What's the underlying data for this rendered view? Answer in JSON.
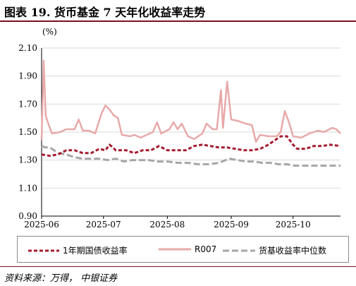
{
  "figure": {
    "title": "图表 19. 货币基金 7 天年化收益率走势",
    "source": "资料来源：万得， 中银证券"
  },
  "colors": {
    "title_rule": "#7a1224",
    "series_treasury": "#a51c30",
    "series_r007": "#e8a9a9",
    "series_median": "#a6a6a6",
    "grid": "#d9d9d9"
  },
  "chart_data": {
    "type": "line",
    "ylabel": "(%)",
    "ylim": [
      0.9,
      2.1
    ],
    "yticks": [
      "2.10",
      "1.90",
      "1.70",
      "1.50",
      "1.30",
      "1.10",
      "0.90"
    ],
    "ytick_values": [
      2.1,
      1.9,
      1.7,
      1.5,
      1.3,
      1.1,
      0.9
    ],
    "xlim": [
      "2025-06-01",
      "2025-10-24"
    ],
    "xticks": [
      {
        "label": "2025-06",
        "date": "2025-06-01"
      },
      {
        "label": "2025-07",
        "date": "2025-07-01"
      },
      {
        "label": "2025-08",
        "date": "2025-08-01"
      },
      {
        "label": "2025-09",
        "date": "2025-09-01"
      },
      {
        "label": "2025-10",
        "date": "2025-10-01"
      }
    ],
    "grid": "horizontal",
    "legend_position": "bottom",
    "series": [
      {
        "name": "1年期国债收益率",
        "style": "dashed",
        "points": [
          [
            "2025-06-01",
            1.34
          ],
          [
            "2025-06-05",
            1.33
          ],
          [
            "2025-06-09",
            1.34
          ],
          [
            "2025-06-13",
            1.37
          ],
          [
            "2025-06-17",
            1.37
          ],
          [
            "2025-06-21",
            1.35
          ],
          [
            "2025-06-25",
            1.35
          ],
          [
            "2025-06-29",
            1.38
          ],
          [
            "2025-07-02",
            1.37
          ],
          [
            "2025-07-04",
            1.41
          ],
          [
            "2025-07-07",
            1.37
          ],
          [
            "2025-07-12",
            1.37
          ],
          [
            "2025-07-16",
            1.35
          ],
          [
            "2025-07-20",
            1.37
          ],
          [
            "2025-07-24",
            1.37
          ],
          [
            "2025-07-28",
            1.4
          ],
          [
            "2025-08-01",
            1.37
          ],
          [
            "2025-08-06",
            1.37
          ],
          [
            "2025-08-10",
            1.37
          ],
          [
            "2025-08-14",
            1.4
          ],
          [
            "2025-08-18",
            1.41
          ],
          [
            "2025-08-22",
            1.4
          ],
          [
            "2025-08-26",
            1.39
          ],
          [
            "2025-08-30",
            1.39
          ],
          [
            "2025-09-03",
            1.38
          ],
          [
            "2025-09-07",
            1.37
          ],
          [
            "2025-09-11",
            1.37
          ],
          [
            "2025-09-15",
            1.38
          ],
          [
            "2025-09-19",
            1.41
          ],
          [
            "2025-09-22",
            1.44
          ],
          [
            "2025-09-25",
            1.47
          ],
          [
            "2025-09-28",
            1.47
          ],
          [
            "2025-10-01",
            1.41
          ],
          [
            "2025-10-03",
            1.38
          ],
          [
            "2025-10-07",
            1.38
          ],
          [
            "2025-10-11",
            1.4
          ],
          [
            "2025-10-15",
            1.4
          ],
          [
            "2025-10-19",
            1.41
          ],
          [
            "2025-10-24",
            1.4
          ]
        ]
      },
      {
        "name": "R007",
        "style": "solid",
        "points": [
          [
            "2025-06-01",
            1.44
          ],
          [
            "2025-06-02",
            2.01
          ],
          [
            "2025-06-03",
            1.62
          ],
          [
            "2025-06-04",
            1.57
          ],
          [
            "2025-06-06",
            1.49
          ],
          [
            "2025-06-10",
            1.5
          ],
          [
            "2025-06-13",
            1.52
          ],
          [
            "2025-06-17",
            1.52
          ],
          [
            "2025-06-19",
            1.59
          ],
          [
            "2025-06-21",
            1.51
          ],
          [
            "2025-06-24",
            1.51
          ],
          [
            "2025-06-27",
            1.49
          ],
          [
            "2025-06-30",
            1.63
          ],
          [
            "2025-07-02",
            1.69
          ],
          [
            "2025-07-04",
            1.66
          ],
          [
            "2025-07-06",
            1.62
          ],
          [
            "2025-07-08",
            1.6
          ],
          [
            "2025-07-10",
            1.48
          ],
          [
            "2025-07-14",
            1.47
          ],
          [
            "2025-07-16",
            1.48
          ],
          [
            "2025-07-19",
            1.46
          ],
          [
            "2025-07-22",
            1.48
          ],
          [
            "2025-07-25",
            1.5
          ],
          [
            "2025-07-27",
            1.57
          ],
          [
            "2025-07-29",
            1.49
          ],
          [
            "2025-08-02",
            1.52
          ],
          [
            "2025-08-04",
            1.57
          ],
          [
            "2025-08-06",
            1.52
          ],
          [
            "2025-08-08",
            1.56
          ],
          [
            "2025-08-11",
            1.47
          ],
          [
            "2025-08-14",
            1.45
          ],
          [
            "2025-08-18",
            1.49
          ],
          [
            "2025-08-20",
            1.56
          ],
          [
            "2025-08-23",
            1.52
          ],
          [
            "2025-08-25",
            1.52
          ],
          [
            "2025-08-27",
            1.8
          ],
          [
            "2025-08-28",
            1.53
          ],
          [
            "2025-08-30",
            1.86
          ],
          [
            "2025-09-01",
            1.59
          ],
          [
            "2025-09-04",
            1.58
          ],
          [
            "2025-09-08",
            1.56
          ],
          [
            "2025-09-11",
            1.55
          ],
          [
            "2025-09-13",
            1.43
          ],
          [
            "2025-09-15",
            1.48
          ],
          [
            "2025-09-19",
            1.47
          ],
          [
            "2025-09-23",
            1.47
          ],
          [
            "2025-09-25",
            1.5
          ],
          [
            "2025-09-27",
            1.65
          ],
          [
            "2025-09-29",
            1.57
          ],
          [
            "2025-10-01",
            1.47
          ],
          [
            "2025-10-05",
            1.46
          ],
          [
            "2025-10-09",
            1.49
          ],
          [
            "2025-10-13",
            1.51
          ],
          [
            "2025-10-16",
            1.5
          ],
          [
            "2025-10-20",
            1.53
          ],
          [
            "2025-10-22",
            1.52
          ],
          [
            "2025-10-24",
            1.49
          ]
        ]
      },
      {
        "name": "货基收益率中位数",
        "style": "dashed",
        "points": [
          [
            "2025-06-01",
            1.4
          ],
          [
            "2025-06-03",
            1.39
          ],
          [
            "2025-06-05",
            1.39
          ],
          [
            "2025-06-09",
            1.35
          ],
          [
            "2025-06-13",
            1.34
          ],
          [
            "2025-06-17",
            1.32
          ],
          [
            "2025-06-21",
            1.31
          ],
          [
            "2025-06-25",
            1.31
          ],
          [
            "2025-06-29",
            1.31
          ],
          [
            "2025-07-03",
            1.3
          ],
          [
            "2025-07-07",
            1.31
          ],
          [
            "2025-07-11",
            1.29
          ],
          [
            "2025-07-15",
            1.3
          ],
          [
            "2025-07-19",
            1.3
          ],
          [
            "2025-07-23",
            1.3
          ],
          [
            "2025-07-27",
            1.29
          ],
          [
            "2025-08-01",
            1.29
          ],
          [
            "2025-08-06",
            1.28
          ],
          [
            "2025-08-11",
            1.28
          ],
          [
            "2025-08-16",
            1.27
          ],
          [
            "2025-08-21",
            1.27
          ],
          [
            "2025-08-26",
            1.28
          ],
          [
            "2025-08-31",
            1.31
          ],
          [
            "2025-09-04",
            1.3
          ],
          [
            "2025-09-08",
            1.29
          ],
          [
            "2025-09-12",
            1.29
          ],
          [
            "2025-09-16",
            1.28
          ],
          [
            "2025-09-20",
            1.28
          ],
          [
            "2025-09-24",
            1.27
          ],
          [
            "2025-09-28",
            1.27
          ],
          [
            "2025-10-02",
            1.26
          ],
          [
            "2025-10-06",
            1.26
          ],
          [
            "2025-10-10",
            1.26
          ],
          [
            "2025-10-14",
            1.26
          ],
          [
            "2025-10-18",
            1.26
          ],
          [
            "2025-10-24",
            1.26
          ]
        ]
      }
    ]
  }
}
